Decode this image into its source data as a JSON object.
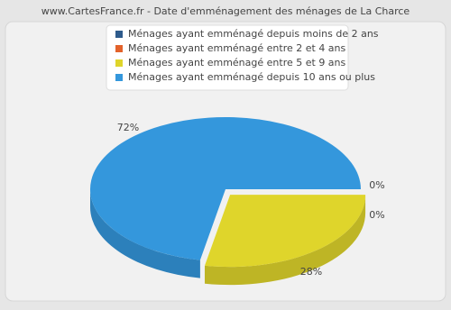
{
  "chart_data": {
    "type": "pie",
    "title": "www.CartesFrance.fr - Date d'emménagement des ménages de La Charce",
    "categories": [
      "Ménages ayant emménagé depuis moins de 2 ans",
      "Ménages ayant emménagé entre 2 et 4 ans",
      "Ménages ayant emménagé entre 5 et 9 ans",
      "Ménages ayant emménagé depuis 10 ans ou plus"
    ],
    "values": [
      0,
      0,
      28,
      72
    ],
    "value_labels": [
      "0%",
      "0%",
      "28%",
      "72%"
    ],
    "colors": [
      "#2e5b8c",
      "#e3622b",
      "#dfd52b",
      "#3497dc"
    ],
    "legend": "top"
  }
}
